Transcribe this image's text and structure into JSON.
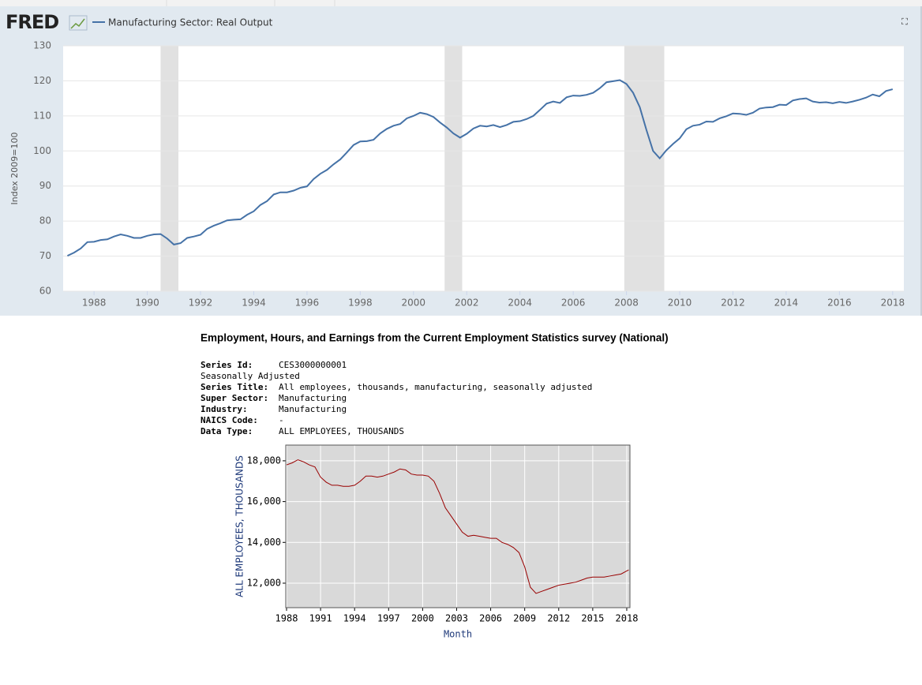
{
  "chart_data": [
    {
      "type": "line",
      "logo": "FRED",
      "x": [
        1987,
        1987.25,
        1987.5,
        1987.75,
        1988,
        1988.25,
        1988.5,
        1988.75,
        1989,
        1989.25,
        1989.5,
        1989.75,
        1990,
        1990.25,
        1990.5,
        1990.75,
        1991,
        1991.25,
        1991.5,
        1991.75,
        1992,
        1992.25,
        1992.5,
        1992.75,
        1993,
        1993.25,
        1993.5,
        1993.75,
        1994,
        1994.25,
        1994.5,
        1994.75,
        1995,
        1995.25,
        1995.5,
        1995.75,
        1996,
        1996.25,
        1996.5,
        1996.75,
        1997,
        1997.25,
        1997.5,
        1997.75,
        1998,
        1998.25,
        1998.5,
        1998.75,
        1999,
        1999.25,
        1999.5,
        1999.75,
        2000,
        2000.25,
        2000.5,
        2000.75,
        2001,
        2001.25,
        2001.5,
        2001.75,
        2002,
        2002.25,
        2002.5,
        2002.75,
        2003,
        2003.25,
        2003.5,
        2003.75,
        2004,
        2004.25,
        2004.5,
        2004.75,
        2005,
        2005.25,
        2005.5,
        2005.75,
        2006,
        2006.25,
        2006.5,
        2006.75,
        2007,
        2007.25,
        2007.5,
        2007.75,
        2008,
        2008.25,
        2008.5,
        2008.75,
        2009,
        2009.25,
        2009.5,
        2009.75,
        2010,
        2010.25,
        2010.5,
        2010.75,
        2011,
        2011.25,
        2011.5,
        2011.75,
        2012,
        2012.25,
        2012.5,
        2012.75,
        2013,
        2013.25,
        2013.5,
        2013.75,
        2014,
        2014.25,
        2014.5,
        2014.75,
        2015,
        2015.25,
        2015.5,
        2015.75,
        2016,
        2016.25,
        2016.5,
        2016.75,
        2017,
        2017.25,
        2017.5,
        2017.75,
        2018
      ],
      "series": [
        {
          "name": "Manufacturing Sector: Real Output",
          "color": "#4572a7",
          "values": [
            70.1,
            71,
            72.2,
            74,
            74.1,
            74.6,
            74.8,
            75.6,
            76.2,
            75.8,
            75.2,
            75.2,
            75.8,
            76.2,
            76.3,
            75,
            73.3,
            73.7,
            75.2,
            75.6,
            76.1,
            77.8,
            78.7,
            79.4,
            80.2,
            80.4,
            80.5,
            81.8,
            82.8,
            84.6,
            85.7,
            87.6,
            88.2,
            88.2,
            88.7,
            89.5,
            89.9,
            92,
            93.5,
            94.6,
            96.2,
            97.6,
            99.6,
            101.7,
            102.7,
            102.8,
            103.2,
            105,
            106.3,
            107.2,
            107.7,
            109.3,
            110,
            110.9,
            110.5,
            109.7,
            108.1,
            106.7,
            105,
            103.8,
            104.9,
            106.4,
            107.2,
            107,
            107.4,
            106.8,
            107.4,
            108.3,
            108.5,
            109.1,
            110,
            111.7,
            113.5,
            114.1,
            113.7,
            115.3,
            115.8,
            115.7,
            116,
            116.6,
            117.9,
            119.6,
            119.9,
            120.2,
            119.1,
            116.6,
            112.5,
            106,
            100,
            97.9,
            100.2,
            102,
            103.6,
            106.2,
            107.2,
            107.5,
            108.4,
            108.3,
            109.3,
            109.9,
            110.7,
            110.6,
            110.3,
            110.9,
            112.1,
            112.4,
            112.5,
            113.2,
            113.1,
            114.4,
            114.8,
            115,
            114.1,
            113.8,
            113.9,
            113.6,
            114,
            113.7,
            114.1,
            114.6,
            115.2,
            116.1,
            115.6,
            117.1,
            117.6
          ]
        }
      ],
      "recessions": [
        [
          1990.5,
          1991.17
        ],
        [
          2001.17,
          2001.83
        ],
        [
          2007.92,
          2009.42
        ]
      ],
      "recession_color": "#e1e1e1",
      "xlim": [
        1986.84,
        2018.42
      ],
      "ylim": [
        60,
        130
      ],
      "xticks": [
        1988,
        1990,
        1992,
        1994,
        1996,
        1998,
        2000,
        2002,
        2004,
        2006,
        2008,
        2010,
        2012,
        2014,
        2016,
        2018
      ],
      "yticks": [
        60,
        70,
        80,
        90,
        100,
        110,
        120,
        130
      ],
      "ylabel": "Index 2009=100",
      "grid": true
    },
    {
      "type": "line",
      "x": [
        1988,
        1988.5,
        1989,
        1989.5,
        1990,
        1990.5,
        1991,
        1991.5,
        1992,
        1992.5,
        1993,
        1993.5,
        1994,
        1994.5,
        1995,
        1995.5,
        1996,
        1996.5,
        1997,
        1997.5,
        1998,
        1998.5,
        1999,
        1999.5,
        2000,
        2000.5,
        2001,
        2001.5,
        2002,
        2002.5,
        2003,
        2003.5,
        2004,
        2004.5,
        2005,
        2005.5,
        2006,
        2006.5,
        2007,
        2007.5,
        2008,
        2008.5,
        2009,
        2009.5,
        2010,
        2010.5,
        2011,
        2011.5,
        2012,
        2012.5,
        2013,
        2013.5,
        2014,
        2014.5,
        2015,
        2015.5,
        2016,
        2016.5,
        2017,
        2017.5,
        2018,
        2018.17
      ],
      "series": [
        {
          "color": "#990000",
          "values": [
            17800,
            17900,
            18050,
            17950,
            17800,
            17700,
            17200,
            16950,
            16800,
            16800,
            16750,
            16750,
            16800,
            17000,
            17250,
            17250,
            17200,
            17250,
            17350,
            17450,
            17600,
            17550,
            17350,
            17300,
            17300,
            17250,
            17000,
            16400,
            15700,
            15300,
            14900,
            14500,
            14300,
            14350,
            14300,
            14250,
            14200,
            14200,
            14000,
            13900,
            13750,
            13500,
            12800,
            11800,
            11500,
            11600,
            11700,
            11800,
            11900,
            11950,
            12000,
            12050,
            12150,
            12250,
            12300,
            12300,
            12300,
            12350,
            12400,
            12450,
            12600,
            12650
          ]
        }
      ],
      "xlim": [
        1987.93,
        2018.28
      ],
      "ylim": [
        10800,
        18770
      ],
      "xticks": [
        1988,
        1991,
        1994,
        1997,
        2000,
        2003,
        2006,
        2009,
        2012,
        2015,
        2018
      ],
      "yticks": [
        {
          "value": 12000,
          "label": "12,000"
        },
        {
          "value": 14000,
          "label": "14,000"
        },
        {
          "value": 16000,
          "label": "16,000"
        },
        {
          "value": 18000,
          "label": "18,000"
        }
      ],
      "xlabel": "Month",
      "ylabel": "ALL EMPLOYEES, THOUSANDS",
      "grid": true
    }
  ],
  "survey": {
    "title": "Employment, Hours, and Earnings from the Current Employment Statistics survey (National)",
    "rows": [
      [
        "Series Id:",
        "CES3000000001"
      ],
      [
        "Seasonally Adjusted"
      ],
      [
        "Series Title:",
        "All employees, thousands, manufacturing, seasonally adjusted"
      ],
      [
        "Super Sector:",
        "Manufacturing"
      ],
      [
        "Industry:",
        "Manufacturing"
      ],
      [
        "NAICS Code:",
        "-"
      ],
      [
        "Data Type:",
        "ALL EMPLOYEES, THOUSANDS"
      ]
    ]
  }
}
